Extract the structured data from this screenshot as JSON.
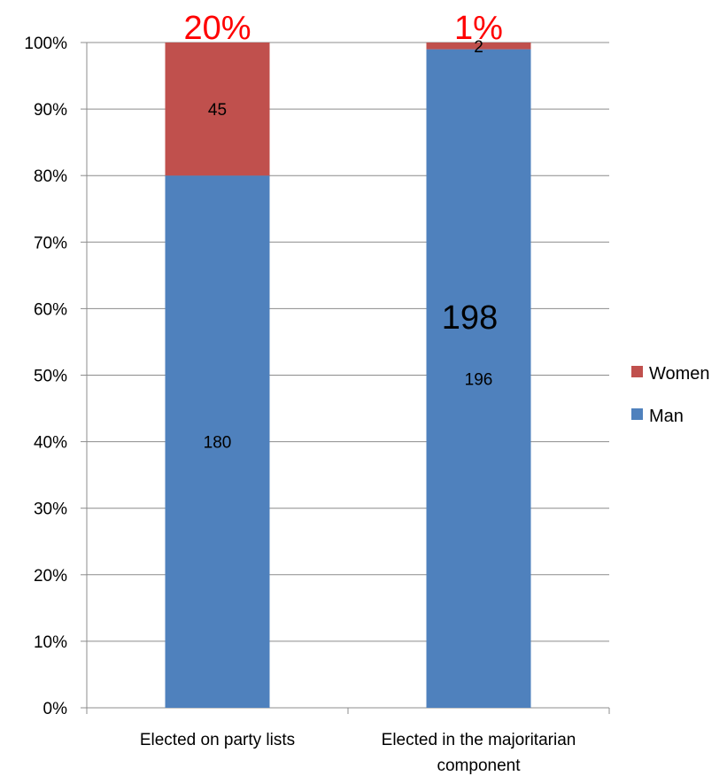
{
  "chart_data": {
    "type": "bar",
    "stacked": "percent",
    "categories": [
      "Elected on party lists",
      "Elected in the majoritarian component"
    ],
    "series": [
      {
        "name": "Man",
        "values": [
          180,
          196
        ],
        "color": "#4f81bd"
      },
      {
        "name": "Women",
        "values": [
          45,
          2
        ],
        "color": "#c0504d"
      }
    ],
    "ylim": [
      0,
      100
    ],
    "y_ticks": [
      "0%",
      "10%",
      "20%",
      "30%",
      "40%",
      "50%",
      "60%",
      "70%",
      "80%",
      "90%",
      "100%"
    ],
    "grid": true,
    "legend_position": "right",
    "annotations": [
      {
        "text": "20%",
        "category": 0,
        "color": "#ff0000"
      },
      {
        "text": "1%",
        "category": 1,
        "color": "#ff0000"
      },
      {
        "text": "198",
        "category": 1,
        "color": "#000000"
      }
    ]
  }
}
